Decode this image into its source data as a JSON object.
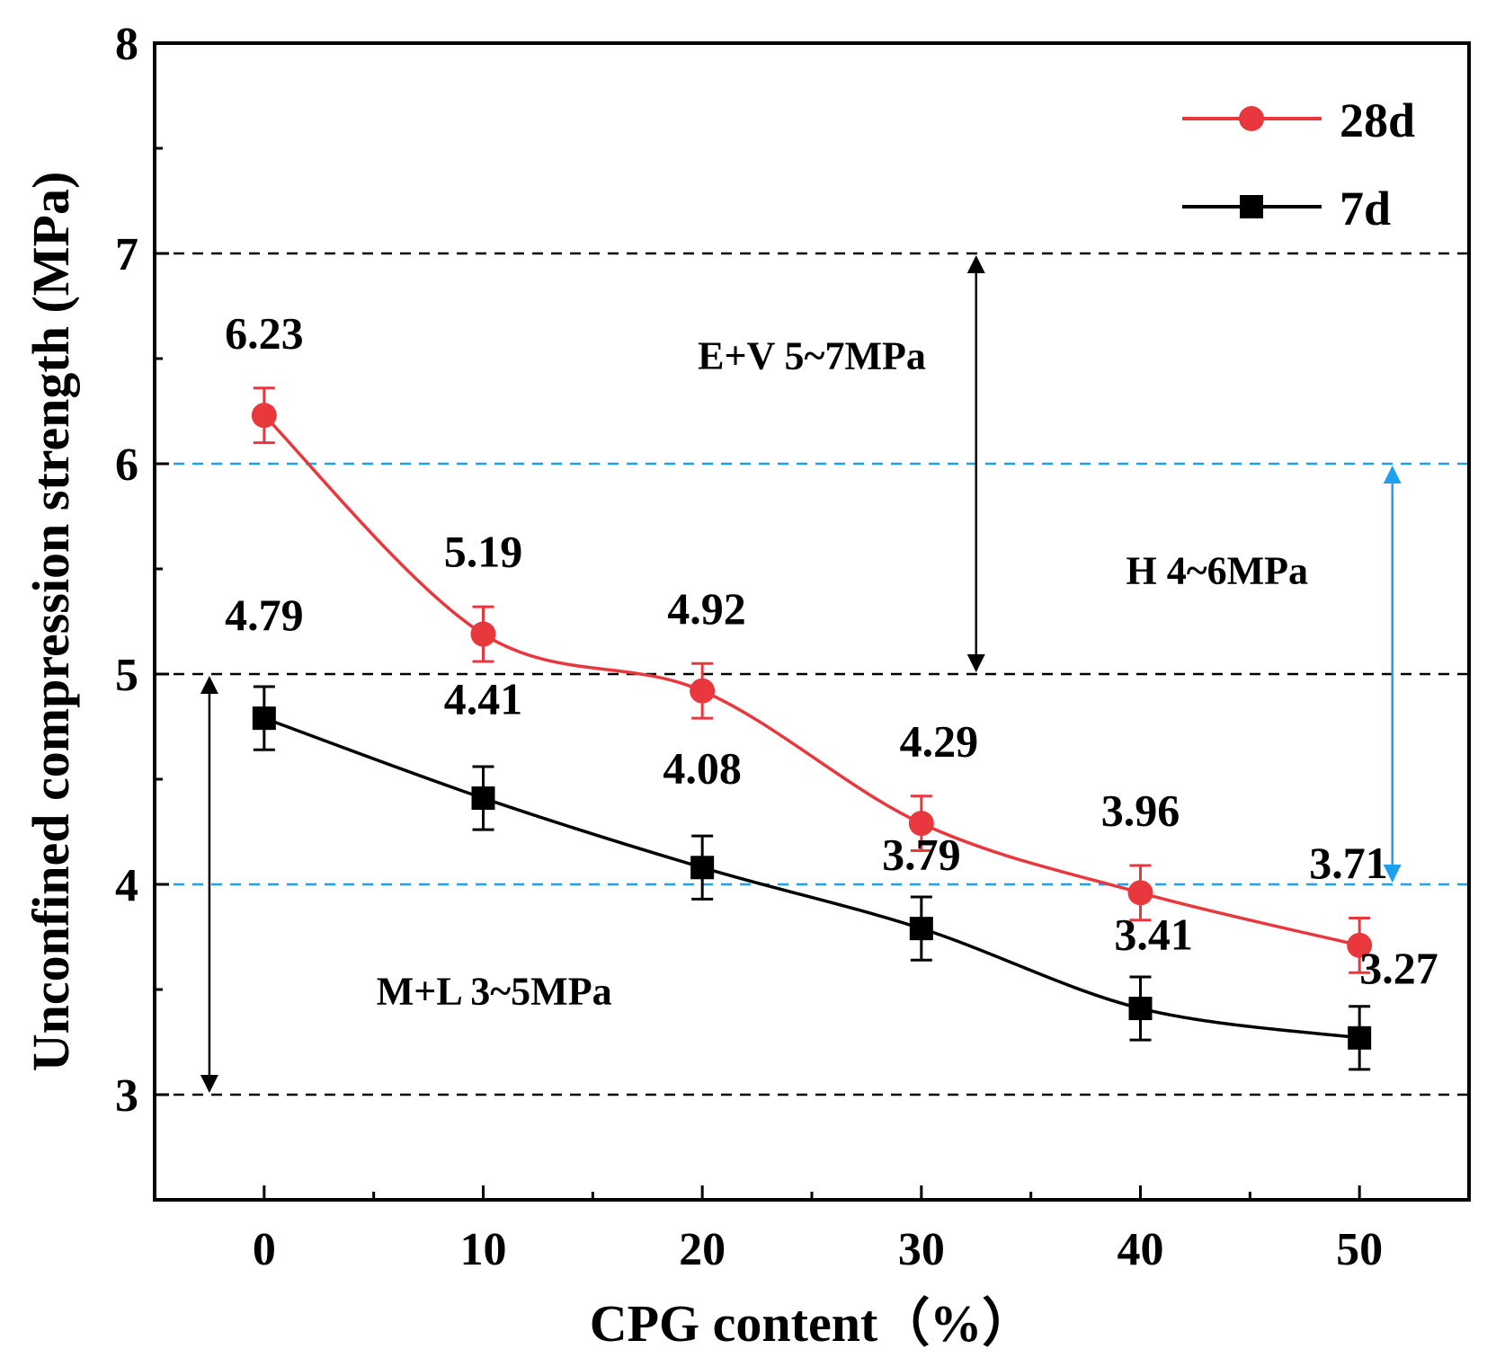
{
  "chart_data": {
    "type": "line",
    "xlabel": "CPG content（%）",
    "ylabel": "Unconfined compression strength (MPa)",
    "xlim": [
      -5,
      55
    ],
    "ylim": [
      2.5,
      8
    ],
    "x": [
      0,
      10,
      20,
      30,
      40,
      50
    ],
    "x_ticks": [
      "0",
      "10",
      "20",
      "30",
      "40",
      "50"
    ],
    "y_ticks": [
      "3",
      "4",
      "5",
      "6",
      "7",
      "8"
    ],
    "grid": false,
    "legend_position": "top-right",
    "series": [
      {
        "name": "28d",
        "color": "#e8383d",
        "marker": "circle",
        "values": [
          6.23,
          5.19,
          4.92,
          4.29,
          3.96,
          3.71
        ],
        "labels": [
          "6.23",
          "5.19",
          "4.92",
          "4.29",
          "3.96",
          "3.71"
        ],
        "error": 0.13
      },
      {
        "name": "7d",
        "color": "#000000",
        "marker": "square",
        "values": [
          4.79,
          4.41,
          4.08,
          3.79,
          3.41,
          3.27
        ],
        "labels": [
          "4.79",
          "4.41",
          "4.08",
          "3.79",
          "3.41",
          "3.27"
        ],
        "error": 0.15
      }
    ],
    "reference_lines": [
      {
        "y": 7,
        "color": "#000000"
      },
      {
        "y": 6,
        "color": "#1fa0ef"
      },
      {
        "y": 5,
        "color": "#000000"
      },
      {
        "y": 4,
        "color": "#1fa0ef"
      },
      {
        "y": 3,
        "color": "#000000"
      }
    ],
    "bands": [
      {
        "label": "E+V  5~7MPa",
        "from": 5,
        "to": 7,
        "arrow_x": 32.5,
        "color": "#000000",
        "text_x": 25,
        "text_y": 6.45
      },
      {
        "label": "H  4~6MPa",
        "from": 4,
        "to": 6,
        "arrow_x": 51.5,
        "color": "#1fa0ef",
        "text_x": 43.5,
        "text_y": 5.43
      },
      {
        "label": "M+L  3~5MPa",
        "from": 3,
        "to": 5,
        "arrow_x": -2.5,
        "color": "#000000",
        "text_x": 10.5,
        "text_y": 3.43
      }
    ]
  }
}
